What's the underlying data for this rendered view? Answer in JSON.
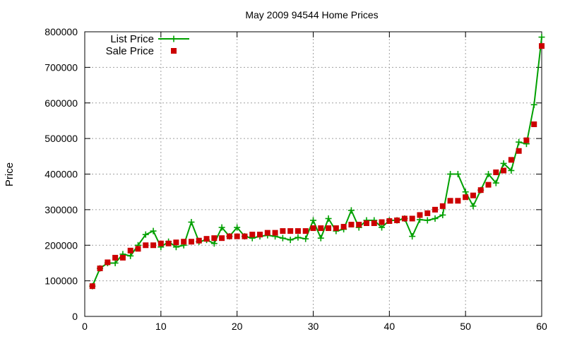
{
  "chart_data": {
    "type": "line",
    "title": "May 2009 94544 Home Prices",
    "xlabel": "",
    "ylabel": "Price",
    "xlim": [
      0,
      60
    ],
    "ylim": [
      0,
      800000
    ],
    "x_ticks": [
      0,
      10,
      20,
      30,
      40,
      50,
      60
    ],
    "y_ticks": [
      0,
      100000,
      200000,
      300000,
      400000,
      500000,
      600000,
      700000,
      800000
    ],
    "grid": true,
    "legend_position": "top-left",
    "x": [
      1,
      2,
      3,
      4,
      5,
      6,
      7,
      8,
      9,
      10,
      11,
      12,
      13,
      14,
      15,
      16,
      17,
      18,
      19,
      20,
      21,
      22,
      23,
      24,
      25,
      26,
      27,
      28,
      29,
      30,
      31,
      32,
      33,
      34,
      35,
      36,
      37,
      38,
      39,
      40,
      41,
      42,
      43,
      44,
      45,
      46,
      47,
      48,
      49,
      50,
      51,
      52,
      53,
      54,
      55,
      56,
      57,
      58,
      59,
      60
    ],
    "series": [
      {
        "name": "List Price",
        "color": "#00a000",
        "style": "line-plus",
        "values": [
          85000,
          135000,
          150000,
          150000,
          175000,
          170000,
          200000,
          230000,
          240000,
          195000,
          210000,
          195000,
          200000,
          265000,
          210000,
          215000,
          205000,
          250000,
          225000,
          250000,
          225000,
          220000,
          225000,
          228000,
          225000,
          220000,
          215000,
          222000,
          218000,
          270000,
          220000,
          275000,
          240000,
          245000,
          298000,
          250000,
          270000,
          270000,
          250000,
          270000,
          270000,
          275000,
          225000,
          272000,
          270000,
          275000,
          285000,
          400000,
          400000,
          350000,
          310000,
          355000,
          400000,
          375000,
          430000,
          410000,
          490000,
          485000,
          595000,
          785000
        ]
      },
      {
        "name": "Sale Price",
        "color": "#cc0000",
        "style": "square",
        "values": [
          85000,
          135000,
          152000,
          165000,
          165000,
          185000,
          190000,
          200000,
          200000,
          205000,
          205000,
          208000,
          210000,
          210000,
          213000,
          218000,
          220000,
          220000,
          225000,
          225000,
          225000,
          230000,
          230000,
          235000,
          235000,
          240000,
          240000,
          240000,
          240000,
          248000,
          248000,
          248000,
          248000,
          252000,
          258000,
          258000,
          262000,
          262000,
          265000,
          268000,
          270000,
          275000,
          275000,
          285000,
          290000,
          300000,
          310000,
          325000,
          325000,
          335000,
          340000,
          355000,
          370000,
          405000,
          410000,
          440000,
          465000,
          495000,
          540000,
          760000
        ]
      }
    ]
  }
}
